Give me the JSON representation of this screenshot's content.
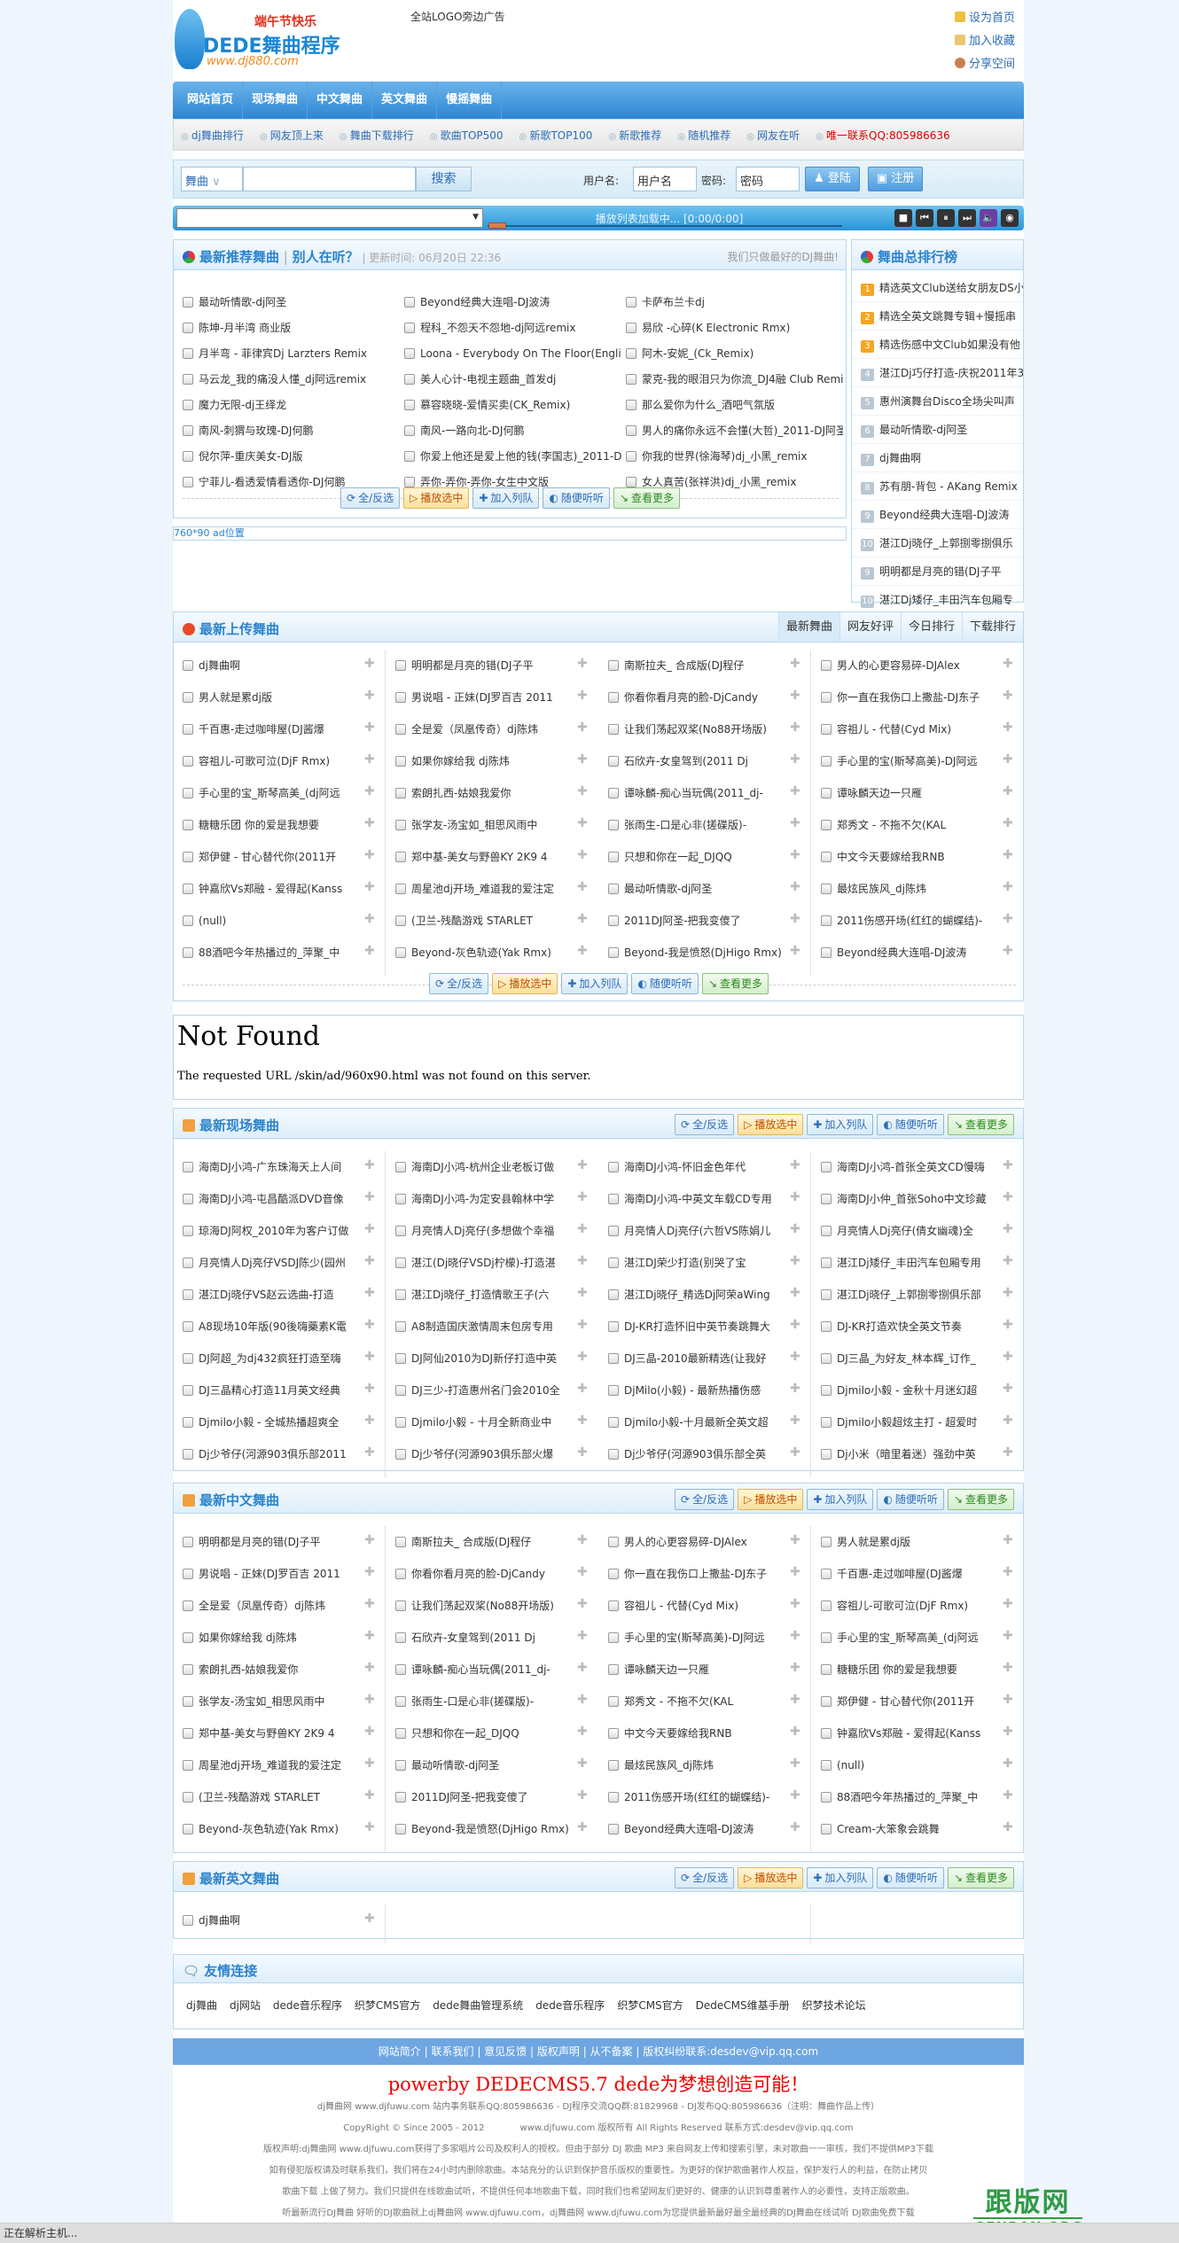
{
  "header": {
    "logo_festival": "端午节快乐",
    "logo_brand": "DEDE舞曲程序",
    "logo_url": "www.dj880.com",
    "ad_text": "全站LOGO旁边广告",
    "top_links": [
      "设为首页",
      "加入收藏",
      "分享空间"
    ]
  },
  "nav": [
    "网站首页",
    "现场舞曲",
    "中文舞曲",
    "英文舞曲",
    "慢摇舞曲"
  ],
  "subnav": [
    "dj舞曲排行",
    "网友顶上来",
    "舞曲下载排行",
    "歌曲TOP500",
    "新歌TOP100",
    "新歌推荐",
    "随机推荐",
    "网友在听",
    "唯一联系QQ:805986636"
  ],
  "search": {
    "category": "舞曲",
    "query": "",
    "button": "搜索",
    "username_label": "用户名:",
    "username_value": "用户名",
    "password_label": "密码:",
    "password_value": "密码",
    "login": "登陆",
    "register": "注册"
  },
  "player": {
    "status": "播放列表加载中... [0:00/0:00]",
    "progress": 0
  },
  "actions": {
    "select": "全/反选",
    "play": "播放选中",
    "queue": "加入列队",
    "random": "随便听听",
    "more": "查看更多"
  },
  "recommend": {
    "title": "最新推荐舞曲",
    "title2": "别人在听？",
    "update_label": "更新时间:",
    "update_time": "06月20日 22:36",
    "slogan": "我们只做最好的DJ舞曲!",
    "columns": [
      [
        "最动听情歌-dj阿圣",
        "陈坤-月半湾 商业版",
        "月半弯 - 菲律宾Dj Larzters Remix",
        "马云龙_我的痛没人懂_dj阿远remix",
        "魔力无限-dj王绎龙",
        "南风-刺猬与玫瑰-DJ何鹏",
        "倪尔萍-重庆美女-DJ版",
        "宁菲儿-看透爱情看透你-DJ何鹏"
      ],
      [
        "Beyond经典大连唱-DJ波涛",
        "程科_不怨天不怨地-dj阿远remix",
        "Loona - Everybody On The Floor(Englis",
        "美人心计-电视主题曲_首发dj",
        "慕容晓晓-爱情买卖(CK_Remix)",
        "南风-一路向北-DJ何鹏",
        "你爱上他还是爱上他的钱(李国志)_2011-D",
        "弄你-弄你-弄你-女生中文版"
      ],
      [
        "卡萨布兰卡dj",
        "易欣 -心碎(K Electronic Rmx)",
        "阿木-安妮_(Ck_Remix)",
        "蒙克-我的眼泪只为你流_DJ4融 Club Remi",
        "那么爱你为什么_酒吧气氛版",
        "男人的痛你永远不会懂(大哲)_2011-DJ阿圣",
        "你我的世界(徐海琴)dj_小黑_remix",
        "女人真苦(张祥洪)dj_小黑_remix"
      ]
    ]
  },
  "ranking": {
    "title": "舞曲总排行榜",
    "items": [
      {
        "n": "1",
        "t": "精选英文Club送给女朋友DS小"
      },
      {
        "n": "2",
        "t": "精选全英文跳舞专辑+慢摇串"
      },
      {
        "n": "3",
        "t": "精选伤感中文Club如果没有他"
      },
      {
        "n": "4",
        "t": "湛江Dj巧仔打造-庆祝2011年3"
      },
      {
        "n": "5",
        "t": "惠州演舞台Disco全场尖叫声"
      },
      {
        "n": "6",
        "t": "最动听情歌-dj阿圣"
      },
      {
        "n": "7",
        "t": "dj舞曲啊"
      },
      {
        "n": "8",
        "t": "苏有朋-背包 - AKang Remix"
      },
      {
        "n": "9",
        "t": "Beyond经典大连唱-DJ波涛"
      },
      {
        "n": "10",
        "t": "湛江Dj晓仔_上郭捌零捌俱乐"
      },
      {
        "n": "9",
        "t": "明明都是月亮的错(DJ子平"
      },
      {
        "n": "10",
        "t": "湛江Dj矮仔_丰田汽车包厢专"
      }
    ]
  },
  "ad_760": "760*90 ad位置",
  "latest": {
    "title": "最新上传舞曲",
    "tabs": [
      "最新舞曲",
      "网友好评",
      "今日排行",
      "下载排行"
    ],
    "columns": [
      [
        "dj舞曲啊",
        "男人就是累dj版",
        "千百惠-走过咖啡屋(DJ酱爆",
        "容祖儿-可歌可泣(DjF Rmx)",
        "手心里的宝_斯琴高美_(dj阿远",
        "糖糖乐团 你的爱是我想要",
        "郑伊健 - 甘心替代你(2011开",
        "钟嘉欣Vs郑融 - 爱得起(Kanss",
        "(null)",
        "88酒吧今年热播过的_萍聚_中"
      ],
      [
        "明明都是月亮的错(DJ子平",
        "男说唱 - 正妹(DJ罗百吉 2011",
        "全是爱（凤凰传奇）dj陈炜",
        "如果你嫁给我 dj陈炜",
        "索朗扎西-姑娘我爱你",
        "张学友-汤宝如_相思风雨中",
        "郑中基-美女与野兽KY 2K9 4",
        "周星池dj开场_难道我的爱注定",
        "(卫兰-残酷游戏 STARLET",
        "Beyond-灰色轨迹(Yak Rmx)"
      ],
      [
        "南斯拉夫_ 合成版(DJ程仔",
        "你看你看月亮的脸-DjCandy",
        "让我们荡起双桨(No88开场版)",
        "石欣卉-女皇驾到(2011 Dj",
        "谭咏麟-痴心当玩偶(2011_dj-",
        "张雨生-口是心非(搓碟版)-",
        "只想和你在一起_DJQQ",
        "最动听情歌-dj阿圣",
        "2011DJ阿圣-把我变傻了",
        "Beyond-我是愤怒(DjHigo Rmx)"
      ],
      [
        "男人的心更容易碎-DJAlex",
        "你一直在我伤口上撒盐-DJ东子",
        "容祖儿 - 代替(Cyd Mix)",
        "手心里的宝(斯琴高美)-DJ阿远",
        "谭咏麟天边一只雁",
        "郑秀文 - 不拖不欠(KAL",
        "中文今天要嫁给我RNB",
        "最炫民族风_dj陈炜",
        "2011伤感开场(红红的蝴蝶结)-",
        "Beyond经典大连唱-DJ波涛"
      ]
    ]
  },
  "not_found": {
    "title": "Not Found",
    "message": "The requested URL /skin/ad/960x90.html was not found on this server."
  },
  "live": {
    "title": "最新现场舞曲",
    "columns": [
      [
        "海南DJ小鸿-广东珠海天上人间",
        "海南DJ小鸿-屯昌酷派DVD音像",
        "琼海DJ阿权_2010年为客户订做",
        "月亮情人Dj亮仔VSDJ陈少(园州",
        "湛江Dj晓仔VS赵云选曲-打造",
        "A8现场10年版(90後嗨藥素K電",
        "DJ阿超_为dj432疯狂打造至嗨",
        "DJ三晶精心打造11月英文经典",
        "Djmilo小毅 - 全城热播超爽全",
        "Dj少爷仔(河源903俱乐部2011"
      ],
      [
        "海南DJ小鸿-杭州企业老板订做",
        "海南DJ小鸿-为定安县翰林中学",
        "月亮情人Dj亮仔(多想做个幸福",
        "湛江(Dj晓仔VSDj柠檬)-打造湛",
        "湛江Dj晓仔_打造情歌王子(六",
        "A8制造国庆激情周末包房专用",
        "DJ阿仙2010为DJ新仔打造中英",
        "DJ三少-打造惠州名门会2010全",
        "Djmilo小毅 - 十月全新商业中",
        "Dj少爷仔(河源903俱乐部火爆"
      ],
      [
        "海南DJ小鸿-怀旧金色年代",
        "海南DJ小鸿-中英文车载CD专用",
        "月亮情人Dj亮仔(六哲VS陈娟儿",
        "湛江DJ荣少打造(别哭了宝",
        "湛江Dj晓仔_精选Dj阿荣aWing",
        "DJ-KR打造怀旧中英节奏跳舞大",
        "DJ三晶-2010最新精选(让我好",
        "DjMilo(小毅) - 最新热播伤感",
        "Djmilo小毅-十月最新全英文超",
        "Dj少爷仔(河源903俱乐部全英"
      ],
      [
        "海南DJ小鸿-首张全英文CD慢嗨",
        "海南DJ小仲_首张Soho中文珍藏",
        "月亮情人Dj亮仔(倩女幽魂)全",
        "湛江Dj矮仔_丰田汽车包厢专用",
        "湛江Dj晓仔_上郭捌零捌俱乐部",
        "DJ-KR打造欢快全英文节奏",
        "DJ三晶_为好友_林本辉_订作_",
        "Djmilo小毅 - 金秋十月迷幻超",
        "Djmilo小毅超炫主打 - 超爱时",
        "Dj小米（暗里着迷）强劲中英"
      ]
    ]
  },
  "chinese": {
    "title": "最新中文舞曲",
    "columns": [
      [
        "明明都是月亮的错(DJ子平",
        "男说唱 - 正妹(DJ罗百吉 2011",
        "全是爱（凤凰传奇）dj陈炜",
        "如果你嫁给我 dj陈炜",
        "索朗扎西-姑娘我爱你",
        "张学友-汤宝如_相思风雨中",
        "郑中基-美女与野兽KY 2K9 4",
        "周星池dj开场_难道我的爱注定",
        "(卫兰-残酷游戏 STARLET",
        "Beyond-灰色轨迹(Yak Rmx)"
      ],
      [
        "南斯拉夫_ 合成版(DJ程仔",
        "你看你看月亮的脸-DjCandy",
        "让我们荡起双桨(No88开场版)",
        "石欣卉-女皇驾到(2011 Dj",
        "谭咏麟-痴心当玩偶(2011_dj-",
        "张雨生-口是心非(搓碟版)-",
        "只想和你在一起_DJQQ",
        "最动听情歌-dj阿圣",
        "2011DJ阿圣-把我变傻了",
        "Beyond-我是愤怒(DjHigo Rmx)"
      ],
      [
        "男人的心更容易碎-DJAlex",
        "你一直在我伤口上撒盐-DJ东子",
        "容祖儿 - 代替(Cyd Mix)",
        "手心里的宝(斯琴高美)-DJ阿远",
        "谭咏麟天边一只雁",
        "郑秀文 - 不拖不欠(KAL",
        "中文今天要嫁给我RNB",
        "最炫民族风_dj陈炜",
        "2011伤感开场(红红的蝴蝶结)-",
        "Beyond经典大连唱-DJ波涛"
      ],
      [
        "男人就是累dj版",
        "千百惠-走过咖啡屋(DJ酱爆",
        "容祖儿-可歌可泣(DjF Rmx)",
        "手心里的宝_斯琴高美_(dj阿远",
        "糖糖乐团 你的爱是我想要",
        "郑伊健 - 甘心替代你(2011开",
        "钟嘉欣Vs郑融 - 爱得起(Kanss",
        "(null)",
        "88酒吧今年热播过的_萍聚_中",
        "Cream-大笨象会跳舞"
      ]
    ]
  },
  "english": {
    "title": "最新英文舞曲",
    "columns": [
      [
        "dj舞曲啊"
      ],
      [],
      [],
      []
    ]
  },
  "friend_links": {
    "title": "友情连接",
    "items": [
      "dj舞曲",
      "dj网站",
      "dede音乐程序",
      "织梦CMS官方",
      "dede舞曲管理系统",
      "dede音乐程序",
      "织梦CMS官方",
      "DedeCMS维基手册",
      "织梦技术论坛"
    ]
  },
  "footer": {
    "links": [
      "网站简介",
      "联系我们",
      "意见反馈",
      "版权声明",
      "从不备案"
    ],
    "contact": "版权纠纷联系:desdev@vip.qq.com",
    "powerby": "powerby DEDECMS5.7 dede为梦想创造可能！",
    "lines": [
      "dj舞曲网 www.djfuwu.com 站内事务联系QQ:805986636 - DJ程序交流QQ群:81829968 - DJ发布QQ:805986636（注明：舞曲作品上传）",
      "CopyRight © Since 2005 - 2012　　　　www.djfuwu.com 版权所有 All Rights Reserved 联系方式:desdev@vip.qq.com",
      "版权声明:dj舞曲网 www.djfuwu.com获得了多家唱片公司及权利人的授权。但由于部分 DJ 歌曲 MP3 来自网友上传和搜索引擎，未对歌曲一一审核，我们不提供MP3下载",
      "如有侵犯版权请及时联系我们，我们将在24小时内删除歌曲。本站充分的认识到保护音乐版权的重要性。为更好的保护歌曲著作人权益，保护发行人的利益，在防止拷贝",
      "歌曲下载 上做了努力。我们只提供在线歌曲试听，不提供任何本地歌曲下载，同时我们也希望网友们更好的、健康的认识到尊重著作人的必要性，支持正版歌曲。",
      "听最新流行DJ舞曲 好听的DJ歌曲就上dj舞曲网 www.djfuwu.com，dj舞曲网 www.djfuwu.com为您提供最新最好最全最经典的DJ舞曲在线试听 DJ歌曲免费下载"
    ]
  },
  "watermark": {
    "cn": "跟版网",
    "en": "GENBAN.ORG"
  },
  "status_bar": "正在解析主机..."
}
